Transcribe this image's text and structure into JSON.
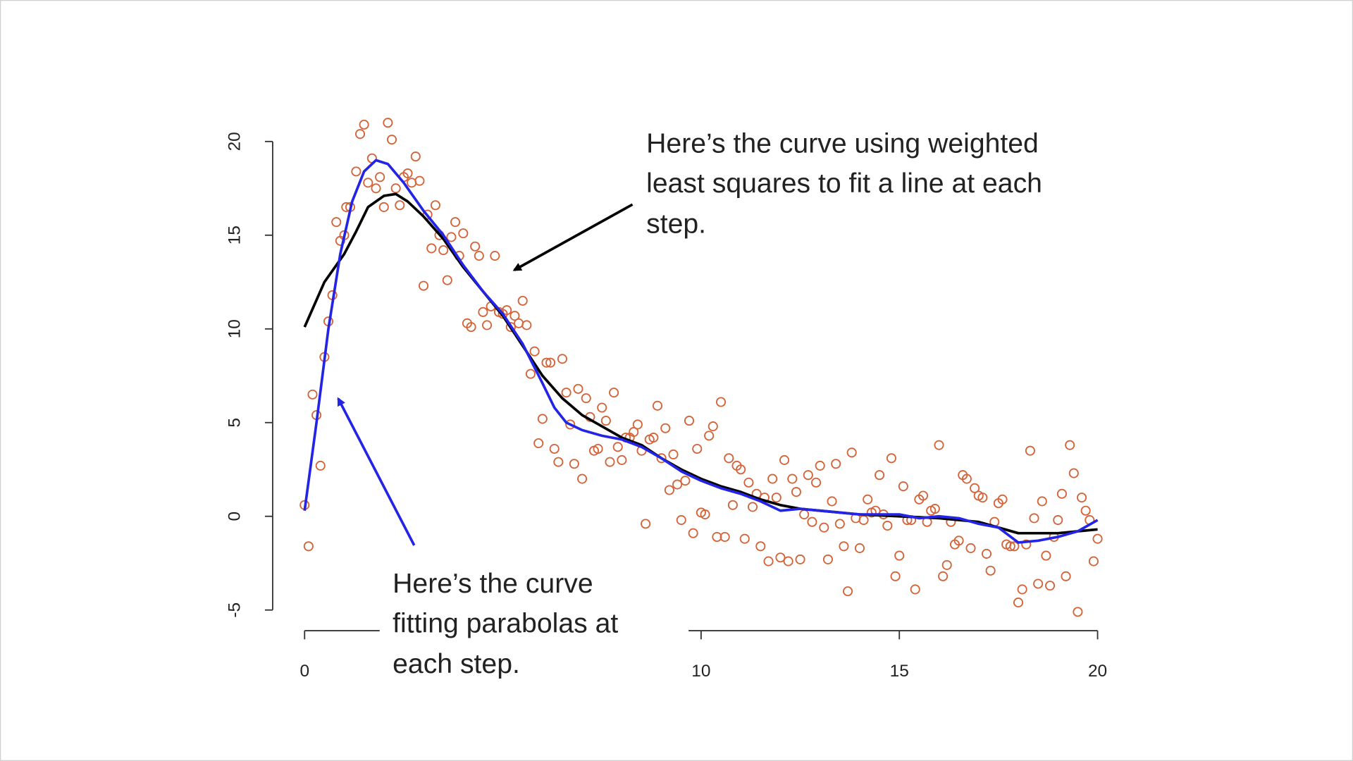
{
  "chart_data": {
    "type": "scatter",
    "xlim": [
      0,
      20
    ],
    "ylim": [
      -5,
      20
    ],
    "xticks": [
      0,
      10,
      15,
      20
    ],
    "yticks": [
      -5,
      0,
      5,
      10,
      15,
      20
    ],
    "series": [
      {
        "color": "#d4643a",
        "marker": "circle",
        "x": [
          0,
          0.1,
          0.2,
          0.3,
          0.4,
          0.5,
          0.6,
          0.7,
          0.8,
          0.9,
          1.0,
          1.05,
          1.15,
          1.3,
          1.4,
          1.5,
          1.6,
          1.7,
          1.8,
          1.9,
          2.0,
          2.1,
          2.2,
          2.3,
          2.4,
          2.5,
          2.6,
          2.7,
          2.8,
          2.9,
          3.0,
          3.1,
          3.2,
          3.3,
          3.4,
          3.5,
          3.6,
          3.7,
          3.8,
          3.9,
          4.0,
          4.1,
          4.2,
          4.3,
          4.4,
          4.5,
          4.6,
          4.7,
          4.8,
          4.9,
          5.0,
          5.1,
          5.2,
          5.3,
          5.4,
          5.5,
          5.6,
          5.7,
          5.8,
          5.9,
          6.0,
          6.1,
          6.2,
          6.3,
          6.4,
          6.5,
          6.6,
          6.7,
          6.8,
          6.9,
          7.0,
          7.1,
          7.2,
          7.3,
          7.4,
          7.5,
          7.6,
          7.7,
          7.8,
          7.9,
          8.0,
          8.1,
          8.2,
          8.3,
          8.4,
          8.5,
          8.6,
          8.7,
          8.8,
          8.9,
          9.0,
          9.1,
          9.2,
          9.3,
          9.4,
          9.5,
          9.6,
          9.7,
          9.8,
          9.9,
          10.0,
          10.1,
          10.2,
          10.3,
          10.4,
          10.5,
          10.6,
          10.7,
          10.8,
          10.9,
          11.0,
          11.1,
          11.2,
          11.3,
          11.4,
          11.5,
          11.6,
          11.7,
          11.8,
          11.9,
          12.0,
          12.1,
          12.2,
          12.3,
          12.4,
          12.5,
          12.6,
          12.7,
          12.8,
          12.9,
          13.0,
          13.1,
          13.2,
          13.3,
          13.4,
          13.5,
          13.6,
          13.7,
          13.8,
          13.9,
          14.0,
          14.1,
          14.2,
          14.3,
          14.4,
          14.5,
          14.6,
          14.7,
          14.8,
          14.9,
          15.0,
          15.1,
          15.2,
          15.3,
          15.4,
          15.5,
          15.6,
          15.7,
          15.8,
          15.9,
          16.0,
          16.1,
          16.2,
          16.3,
          16.4,
          16.5,
          16.6,
          16.7,
          16.8,
          16.9,
          17.0,
          17.1,
          17.2,
          17.3,
          17.4,
          17.5,
          17.6,
          17.7,
          17.8,
          17.9,
          18.0,
          18.1,
          18.2,
          18.3,
          18.4,
          18.5,
          18.6,
          18.7,
          18.8,
          18.9,
          19.0,
          19.1,
          19.2,
          19.3,
          19.4,
          19.5,
          19.6,
          19.7,
          19.8,
          19.9,
          20.0
        ],
        "y": [
          0.6,
          -1.6,
          6.5,
          5.4,
          2.7,
          8.5,
          10.4,
          11.8,
          15.7,
          14.7,
          15.0,
          16.5,
          16.5,
          18.4,
          20.4,
          20.9,
          17.8,
          19.1,
          17.5,
          18.1,
          16.5,
          21.0,
          20.1,
          17.5,
          16.6,
          18.1,
          18.3,
          17.8,
          19.2,
          17.9,
          12.3,
          16.1,
          14.3,
          16.6,
          15.0,
          14.2,
          12.6,
          14.9,
          15.7,
          13.9,
          15.1,
          10.3,
          10.1,
          14.4,
          13.9,
          10.9,
          10.2,
          11.2,
          13.9,
          10.9,
          10.8,
          11.0,
          10.1,
          10.7,
          10.3,
          11.5,
          10.2,
          7.6,
          8.8,
          3.9,
          5.2,
          8.2,
          8.2,
          3.6,
          2.9,
          8.4,
          6.6,
          4.9,
          2.8,
          6.8,
          2.0,
          6.3,
          5.3,
          3.5,
          3.6,
          5.8,
          5.1,
          2.9,
          6.6,
          3.7,
          3.0,
          4.2,
          4.2,
          4.5,
          4.9,
          3.5,
          -0.4,
          4.1,
          4.2,
          5.9,
          3.1,
          4.7,
          1.4,
          3.3,
          1.7,
          -0.2,
          1.9,
          5.1,
          -0.9,
          3.6,
          0.2,
          0.1,
          4.3,
          4.8,
          -1.1,
          6.1,
          -1.1,
          3.1,
          0.6,
          2.7,
          2.5,
          -1.2,
          1.8,
          0.5,
          1.2,
          -1.6,
          1.0,
          -2.4,
          2.0,
          1.0,
          -2.2,
          3.0,
          -2.4,
          2.0,
          1.3,
          -2.3,
          0.1,
          2.2,
          -0.3,
          1.8,
          2.7,
          -0.6,
          -2.3,
          0.8,
          2.8,
          -0.4,
          -1.6,
          -4.0,
          3.4,
          -0.1,
          -1.7,
          -0.2,
          0.9,
          0.2,
          0.3,
          2.2,
          0.1,
          -0.5,
          3.1,
          -3.2,
          -2.1,
          1.6,
          -0.2,
          -0.2,
          -3.9,
          0.9,
          1.1,
          -0.3,
          0.3,
          0.4,
          3.8,
          -3.2,
          -2.6,
          -0.3,
          -1.5,
          -1.3,
          2.2,
          2.0,
          -1.7,
          1.5,
          1.1,
          1.0,
          -2.0,
          -2.9,
          -0.3,
          0.7,
          0.9,
          -1.5,
          -1.6,
          -1.6,
          -4.6,
          -3.9,
          -1.5,
          3.5,
          -0.1,
          -3.6,
          0.8,
          -2.1,
          -3.7,
          -1.1,
          -0.2,
          1.2,
          -3.2,
          3.8,
          2.3,
          -5.1,
          1.0,
          0.3,
          -0.2,
          -2.4,
          -1.2
        ]
      }
    ],
    "lines": [
      {
        "color": "#000000",
        "x": [
          0,
          0.5,
          1,
          1.3,
          1.6,
          2,
          2.3,
          2.6,
          3,
          3.5,
          4,
          4.5,
          5,
          5.5,
          6,
          6.5,
          7,
          7.5,
          8,
          8.5,
          9,
          9.5,
          10,
          10.5,
          11,
          11.5,
          12,
          12.5,
          13,
          14,
          15,
          16,
          17,
          17.5,
          18,
          19,
          20
        ],
        "y": [
          10.1,
          12.5,
          14,
          15.2,
          16.5,
          17.1,
          17.2,
          16.8,
          16,
          14.8,
          13.3,
          12,
          10.7,
          9.1,
          7.5,
          6.3,
          5.4,
          4.8,
          4.2,
          3.8,
          3.1,
          2.5,
          2,
          1.6,
          1.3,
          0.9,
          0.6,
          0.4,
          0.3,
          0.1,
          0,
          -0.1,
          -0.3,
          -0.6,
          -0.9,
          -0.9,
          -0.7
        ]
      },
      {
        "color": "#2424e6",
        "x": [
          0,
          0.3,
          0.6,
          0.9,
          1.2,
          1.5,
          1.8,
          2.1,
          2.5,
          3,
          3.5,
          4,
          4.5,
          5,
          5.5,
          6,
          6.3,
          6.6,
          7,
          7.5,
          8,
          8.5,
          9,
          9.5,
          10,
          10.5,
          11,
          11.5,
          12,
          12.5,
          13,
          14,
          15,
          15.5,
          16,
          16.5,
          17,
          17.5,
          18,
          18.5,
          19,
          19.5,
          20
        ],
        "y": [
          0.3,
          5,
          10,
          14,
          16.8,
          18.4,
          19,
          18.8,
          17.8,
          16.3,
          15,
          13.4,
          12,
          10.8,
          9.2,
          7.1,
          5.8,
          5,
          4.6,
          4.3,
          4.1,
          3.7,
          3.1,
          2.4,
          1.9,
          1.5,
          1.2,
          0.8,
          0.3,
          0.4,
          0.3,
          0.1,
          0.1,
          -0.1,
          0,
          -0.1,
          -0.4,
          -0.6,
          -1.4,
          -1.3,
          -1.1,
          -0.8,
          -0.2
        ]
      }
    ],
    "annotations": [
      {
        "lines": [
          "Here’s the curve using weighted",
          "least squares to fit a line at each",
          "step."
        ]
      },
      {
        "lines": [
          "Here’s the curve",
          "fitting parabolas at",
          "each step."
        ]
      }
    ]
  }
}
